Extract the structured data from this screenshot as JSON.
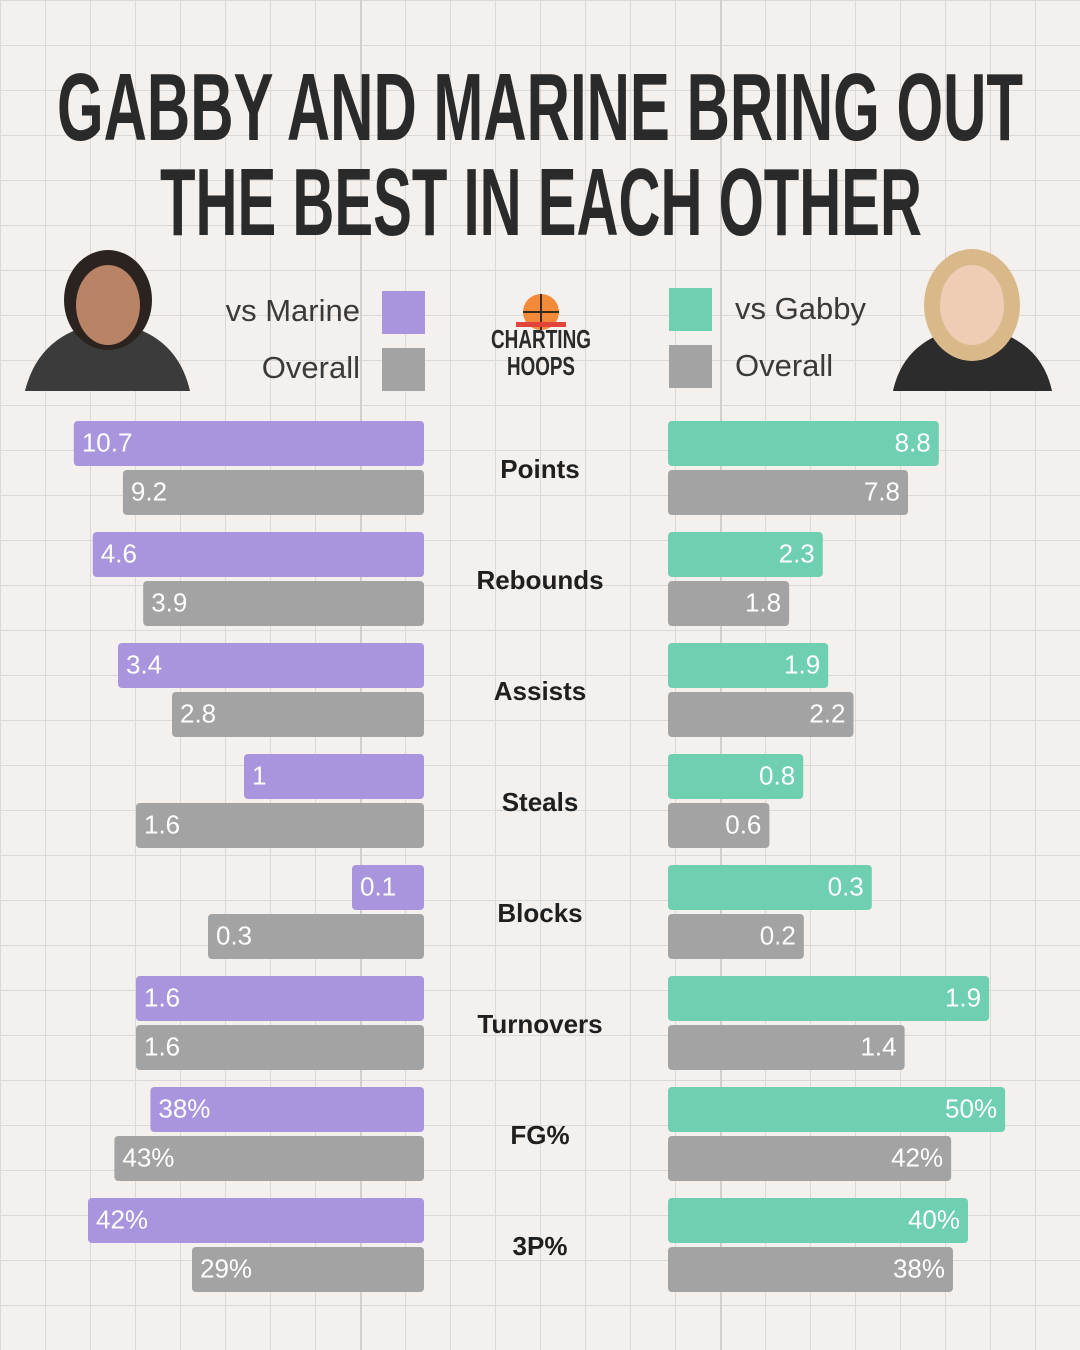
{
  "chart_data": {
    "type": "butterfly-bar",
    "title": [
      "GABBY AND MARINE BRING OUT",
      "THE BEST IN EACH OTHER"
    ],
    "brand": [
      "CHARTING",
      "HOOPS"
    ],
    "categories": [
      "Points",
      "Rebounds",
      "Assists",
      "Steals",
      "Blocks",
      "Turnovers",
      "FG%",
      "3P%"
    ],
    "left": {
      "xlims": [
        [
          0,
          11
        ],
        [
          0,
          5
        ],
        [
          0,
          4
        ],
        [
          0,
          2
        ],
        [
          0,
          0.5
        ],
        [
          0,
          2
        ],
        [
          0,
          50
        ],
        [
          0,
          45
        ]
      ],
      "series": [
        {
          "name": "vs Marine",
          "color": "#a995dd",
          "values": [
            10.7,
            4.6,
            3.4,
            1,
            0.1,
            1.6,
            38,
            42
          ],
          "value_labels": [
            "10.7",
            "4.6",
            "3.4",
            "1",
            "0.1",
            "1.6",
            "38%",
            "42%"
          ]
        },
        {
          "name": "Overall",
          "color": "#a3a3a3",
          "values": [
            9.2,
            3.9,
            2.8,
            1.6,
            0.3,
            1.6,
            43,
            29
          ],
          "value_labels": [
            "9.2",
            "3.9",
            "2.8",
            "1.6",
            "0.3",
            "1.6",
            "43%",
            "29%"
          ]
        }
      ]
    },
    "right": {
      "xlims": [
        [
          0,
          11.7
        ],
        [
          0,
          5.35
        ],
        [
          0,
          4.27
        ],
        [
          0,
          2.13
        ],
        [
          0,
          0.53
        ],
        [
          0,
          2.13
        ],
        [
          0,
          53.4
        ],
        [
          0,
          48
        ]
      ],
      "series": [
        {
          "name": "vs Gabby",
          "color": "#6ecfb1",
          "values": [
            8.8,
            2.3,
            1.9,
            0.8,
            0.3,
            1.9,
            50,
            40
          ],
          "value_labels": [
            "8.8",
            "2.3",
            "1.9",
            "0.8",
            "0.3",
            "1.9",
            "50%",
            "40%"
          ]
        },
        {
          "name": "Overall",
          "color": "#a3a3a3",
          "values": [
            7.8,
            1.8,
            2.2,
            0.6,
            0.2,
            1.4,
            42,
            38
          ],
          "value_labels": [
            "7.8",
            "1.8",
            "2.2",
            "0.6",
            "0.2",
            "1.4",
            "42%",
            "38%"
          ]
        }
      ]
    }
  }
}
